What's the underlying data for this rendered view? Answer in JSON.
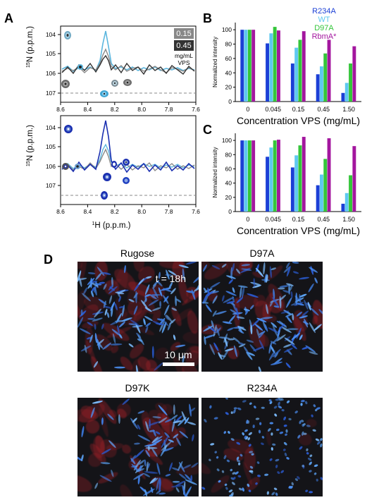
{
  "figure": {
    "panel_A": {
      "letter": "A",
      "y_ticks": [
        "104",
        "105",
        "106",
        "107"
      ],
      "x_ticks": [
        "8.6",
        "8.4",
        "8.2",
        "8.0",
        "7.8",
        "7.6"
      ],
      "ylabel": "15N (p.p.m.)",
      "ylabel_sup": "15",
      "ylabel_rest": "N (p.p.m.)",
      "xlabel": "1H (p.p.m.)",
      "xlabel_sup": "1",
      "xlabel_rest": "H (p.p.m.)",
      "box_labels": [
        "0.15",
        "0.45"
      ],
      "unit_label_1": "mg/mL",
      "unit_label_2": "VPS",
      "colors": {
        "light_blue": "#5bb6de",
        "dark": "#333333",
        "gray": "#888888",
        "blue": "#1a2fb0"
      }
    },
    "panel_B": {
      "letter": "B"
    },
    "panel_C": {
      "letter": "C"
    },
    "panel_D": {
      "letter": "D",
      "images": [
        {
          "title": "Rugose",
          "annotation": "t = 18h",
          "scalebar": "10 μm"
        },
        {
          "title": "D97A"
        },
        {
          "title": "D97K"
        },
        {
          "title": "R234A"
        }
      ]
    },
    "legend": [
      {
        "label": "R234A",
        "color": "#1b3fd6"
      },
      {
        "label": "WT",
        "color": "#5ec8f0"
      },
      {
        "label": "D97A",
        "color": "#34c53a"
      },
      {
        "label": "RbmA*",
        "color": "#a3169e"
      }
    ]
  },
  "chart_data": [
    {
      "panel": "B",
      "type": "bar",
      "categories": [
        "0",
        "0.045",
        "0.15",
        "0.45",
        "1.50"
      ],
      "series": [
        {
          "name": "R234A",
          "values": [
            100,
            81,
            53,
            38,
            12
          ]
        },
        {
          "name": "WT",
          "values": [
            100,
            95,
            75,
            49,
            26
          ]
        },
        {
          "name": "D97A",
          "values": [
            100,
            104,
            86,
            67,
            53
          ]
        },
        {
          "name": "RbmA*",
          "values": [
            100,
            99,
            98,
            86,
            77
          ]
        }
      ],
      "ylim": [
        0,
        110
      ],
      "yticks": [
        "0",
        "20",
        "40",
        "60",
        "80",
        "100"
      ],
      "xlabel": "Concentration VPS (mg/mL)",
      "ylabel": "Normalized intensity"
    },
    {
      "panel": "C",
      "type": "bar",
      "categories": [
        "0",
        "0.045",
        "0.15",
        "0.45",
        "1.50"
      ],
      "series": [
        {
          "name": "R234A",
          "values": [
            100,
            77,
            62,
            37,
            11
          ]
        },
        {
          "name": "WT",
          "values": [
            100,
            90,
            79,
            52,
            26
          ]
        },
        {
          "name": "D97A",
          "values": [
            100,
            100,
            93,
            74,
            51
          ]
        },
        {
          "name": "RbmA*",
          "values": [
            100,
            101,
            105,
            103,
            92
          ]
        }
      ],
      "ylim": [
        0,
        110
      ],
      "yticks": [
        "0",
        "20",
        "40",
        "60",
        "80",
        "100"
      ],
      "xlabel": "Concentration VPS (mg/mL)",
      "ylabel": "Normalized intensity"
    }
  ]
}
